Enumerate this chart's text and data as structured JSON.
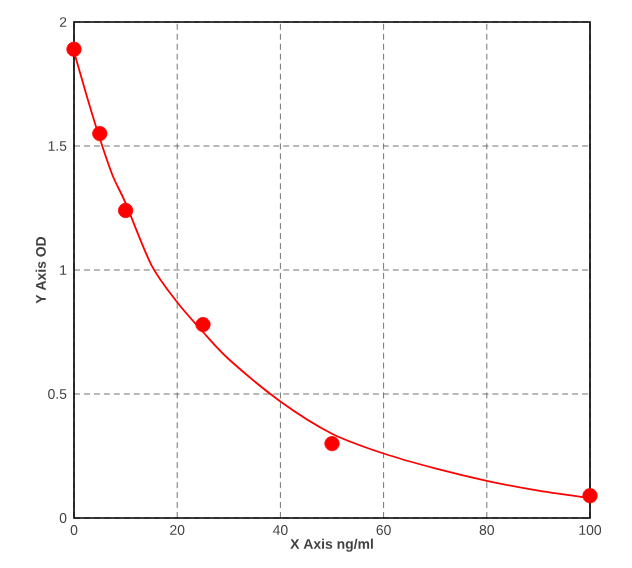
{
  "chart_data": {
    "type": "scatter",
    "xlabel": "X Axis ng/ml",
    "ylabel": "Y Axis OD",
    "xlim": [
      0,
      100
    ],
    "ylim": [
      0,
      2
    ],
    "xticks": [
      0,
      20,
      40,
      60,
      80,
      100
    ],
    "yticks": [
      0,
      0.5,
      1,
      1.5,
      2
    ],
    "grid": true,
    "series": [
      {
        "color": "#ff0000",
        "marker": "circle",
        "x": [
          0,
          5,
          10,
          25,
          50,
          100
        ],
        "values": [
          1.89,
          1.55,
          1.24,
          0.78,
          0.3,
          0.09
        ]
      },
      {
        "type": "line",
        "color": "#ff0000",
        "marker": "none",
        "line_style": "solid",
        "x": [
          0,
          2.5,
          5,
          7.5,
          10,
          15,
          20,
          25,
          30,
          40,
          50,
          60,
          70,
          80,
          90,
          100
        ],
        "values": [
          1.88,
          1.7,
          1.53,
          1.38,
          1.27,
          1.02,
          0.87,
          0.75,
          0.64,
          0.47,
          0.34,
          0.26,
          0.2,
          0.15,
          0.11,
          0.08
        ]
      }
    ]
  }
}
